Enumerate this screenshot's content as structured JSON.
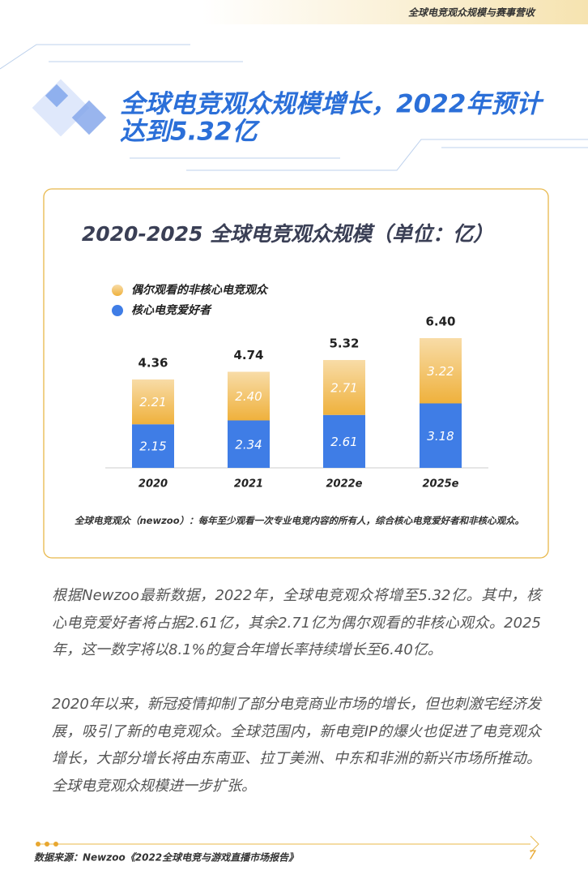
{
  "header": {
    "section": "全球电竞观众规模与赛事营收"
  },
  "title_lines": [
    "全球电竞观众规模增长，2022年预计",
    "达到5.32亿"
  ],
  "chart_data": {
    "type": "bar",
    "stacked": true,
    "title": "2020-2025 全球电竞观众规模（单位：亿）",
    "categories": [
      "2020",
      "2021",
      "2022e",
      "2025e"
    ],
    "series": [
      {
        "name": "核心电竞爱好者",
        "color": "#3f7de6",
        "values": [
          2.15,
          2.34,
          2.61,
          3.18
        ]
      },
      {
        "name": "偶尔观看的非核心电竞观众",
        "color": "#efb13c",
        "values": [
          2.21,
          2.4,
          2.71,
          3.22
        ],
        "value_labels": [
          "2.21",
          "2.40",
          "2.71",
          "3.22"
        ]
      }
    ],
    "total_labels": [
      "4.36",
      "4.74",
      "5.32",
      "6.40"
    ],
    "note": "全球电竞观众（newzoo）：每年至少观看一次专业电竞内容的所有人，综合核心电竞爱好者和非核心观众。"
  },
  "paragraphs": [
    "根据Newzoo最新数据，2022年，全球电竞观众将增至5.32亿。其中，核心电竞爱好者将占据2.61亿，其余2.71亿为偶尔观看的非核心观众。2025年，这一数字将以8.1%的复合年增长率持续增长至6.40亿。",
    "2020年以来，新冠疫情抑制了部分电竞商业市场的增长，但也刺激宅经济发展，吸引了新的电竞观众。全球范围内，新电竞IP的爆火也促进了电竞观众增长，大部分增长将由东南亚、拉丁美洲、中东和非洲的新兴市场所推动。全球电竞观众规模进一步扩张。"
  ],
  "footer": {
    "source": "数据来源：Newzoo《2022全球电竞与游戏直播市场报告》",
    "page": "7"
  }
}
